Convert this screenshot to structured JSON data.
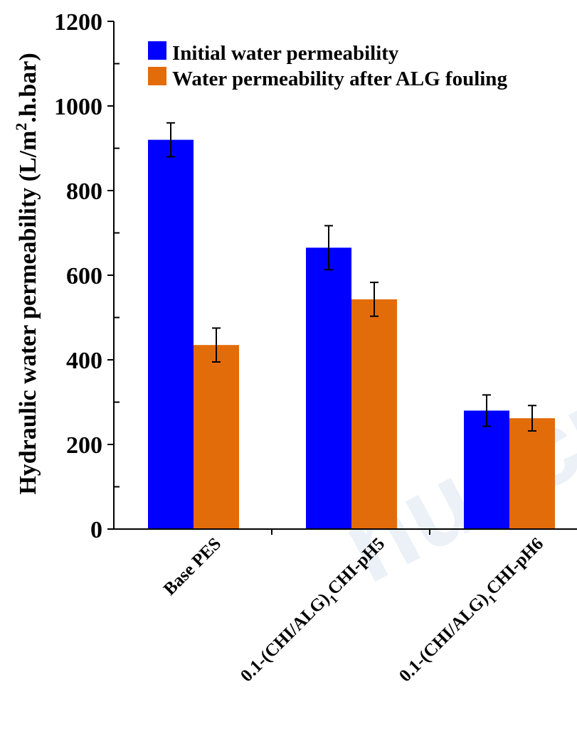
{
  "chart_data": {
    "type": "bar",
    "ylabel": "Hydraulic water permeability (L/m².h.bar)",
    "ylabel_parts": {
      "pre": "Hydraulic water permeability (L/m",
      "sup": "2",
      "post": ".h.bar)"
    },
    "ylim": [
      0,
      1200
    ],
    "yticks": [
      0,
      200,
      400,
      600,
      800,
      1000,
      1200
    ],
    "categories": [
      "Base PES",
      "0.1-(CHI/ALG)1CHI-pH5",
      "0.1-(CHI/ALG)1CHI-pH6"
    ],
    "category_parts": [
      {
        "pre": "Base PES",
        "sub": "",
        "post": ""
      },
      {
        "pre": "0.1-(CHI/ALG)",
        "sub": "1",
        "post": "CHI-pH5"
      },
      {
        "pre": "0.1-(CHI/ALG)",
        "sub": "1",
        "post": "CHI-pH6"
      }
    ],
    "series": [
      {
        "name": "Initial water permeability",
        "color": "#0000ff",
        "values": [
          920,
          665,
          280
        ],
        "errors": [
          40,
          52,
          37
        ]
      },
      {
        "name": "Water permeability after ALG fouling",
        "color": "#e36c0a",
        "values": [
          435,
          543,
          262
        ],
        "errors": [
          40,
          40,
          30
        ]
      }
    ],
    "legend_position": "top-left",
    "grid": false,
    "watermark": "nuscript"
  }
}
